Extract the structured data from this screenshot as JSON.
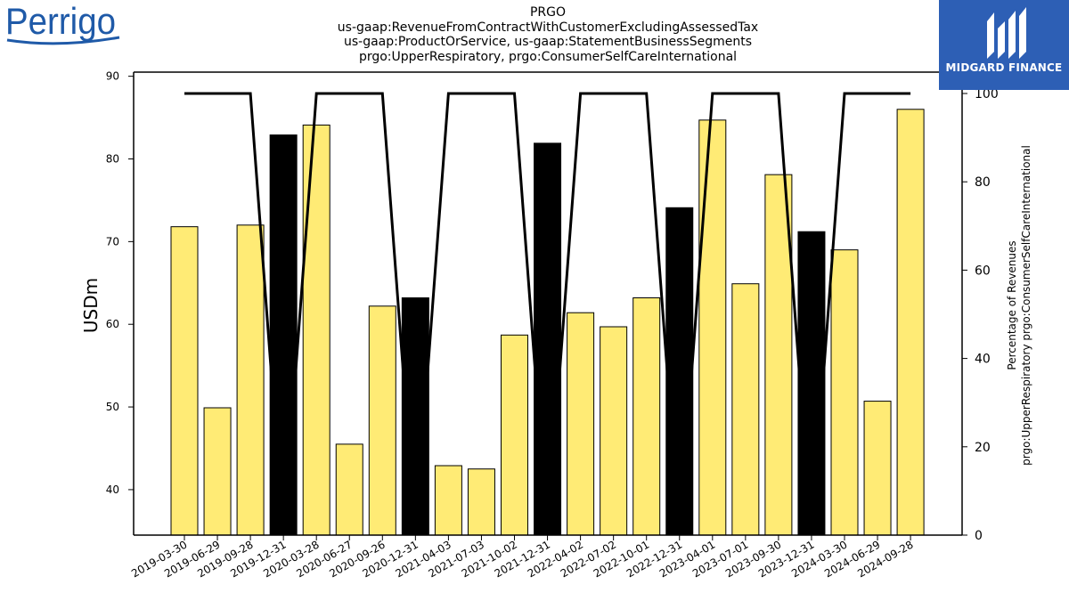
{
  "title_lines": [
    "PRGO",
    "us-gaap:RevenueFromContractWithCustomerExcludingAssessedTax",
    "us-gaap:ProductOrService, us-gaap:StatementBusinessSegments",
    "prgo:UpperRespiratory, prgo:ConsumerSelfCareInternational"
  ],
  "logo_left": "Perrigo",
  "logo_right": "MIDGARD FINANCE",
  "colors": {
    "bar_default": "#ffeb75",
    "bar_highlight": "#000000",
    "line": "#000000",
    "logo_blue": "#1f5aa8",
    "brand_box": "#2d5fb5"
  },
  "chart_data": {
    "type": "bar",
    "title": "PRGO",
    "ylabel": "USDm",
    "y2label_lines": [
      "Percentage of Revenues",
      "prgo:UpperRespiratory prgo:ConsumerSelfCareInternational"
    ],
    "ylim": [
      34.5,
      90.5
    ],
    "y_ticks": [
      40,
      50,
      60,
      70,
      80,
      90
    ],
    "y2lim": [
      0,
      100
    ],
    "y2_ticks": [
      0,
      20,
      40,
      60,
      80,
      100
    ],
    "grid": false,
    "categories": [
      "2019-03-30",
      "2019-06-29",
      "2019-09-28",
      "2019-12-31",
      "2020-03-28",
      "2020-06-27",
      "2020-09-26",
      "2020-12-31",
      "2021-04-03",
      "2021-07-03",
      "2021-10-02",
      "2021-12-31",
      "2022-04-02",
      "2022-07-02",
      "2022-10-01",
      "2022-12-31",
      "2023-04-01",
      "2023-07-01",
      "2023-09-30",
      "2023-12-31",
      "2024-03-30",
      "2024-06-29",
      "2024-09-28"
    ],
    "series": [
      {
        "type": "bar",
        "values": [
          71.8,
          49.9,
          72.0,
          82.9,
          84.1,
          45.5,
          62.2,
          63.2,
          42.9,
          42.5,
          58.7,
          81.9,
          61.4,
          59.7,
          63.2,
          74.1,
          84.7,
          64.9,
          78.1,
          71.2,
          69.0,
          50.7,
          86.0
        ]
      },
      {
        "type": "line",
        "axis": "right",
        "values": [
          100,
          100,
          100,
          0,
          100,
          100,
          100,
          0,
          100,
          100,
          100,
          0,
          100,
          100,
          100,
          0,
          100,
          100,
          100,
          0,
          100,
          100,
          100
        ]
      }
    ]
  }
}
